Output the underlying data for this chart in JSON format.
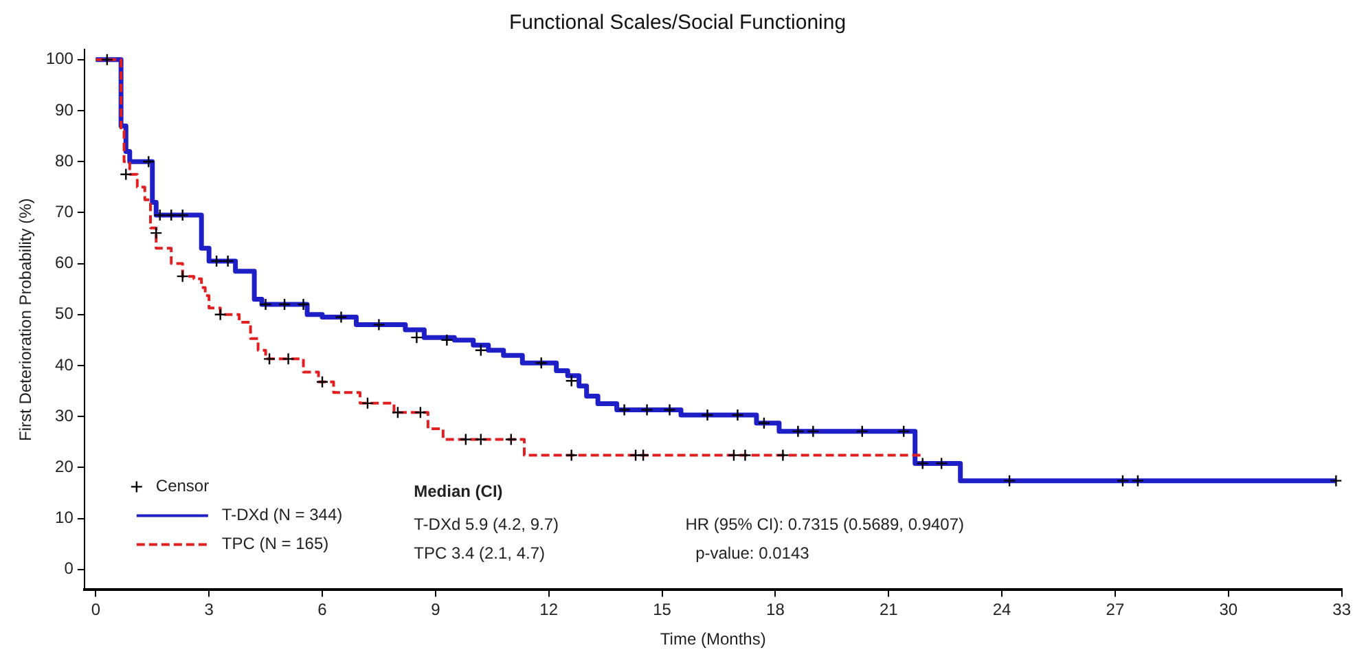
{
  "chart_data": {
    "type": "step",
    "title": "Functional Scales/Social Functioning",
    "xlabel": "Time (Months)",
    "ylabel": "First Deterioration Probability (%)",
    "xlim": [
      -0.3,
      33
    ],
    "xticks": [
      0,
      3,
      6,
      9,
      12,
      15,
      18,
      21,
      24,
      27,
      30,
      33
    ],
    "ylim": [
      -4,
      102
    ],
    "yticks": [
      0,
      10,
      20,
      30,
      40,
      50,
      60,
      70,
      80,
      90,
      100
    ],
    "grid": false,
    "legend": "bottom left",
    "marker": "none",
    "series": [
      {
        "name": "Censor",
        "type": "scatter",
        "marker": "cross",
        "color": "#000000",
        "x": [
          0.3,
          1.4,
          1.7,
          2.0,
          2.3,
          3.2,
          3.5,
          4.5,
          5.0,
          5.5,
          6.5,
          7.5,
          8.5,
          9.3,
          10.2,
          11.8,
          12.6,
          14.0,
          14.6,
          15.2,
          16.2,
          17.0,
          17.7,
          18.6,
          19.0,
          20.3,
          21.4,
          21.9,
          22.4,
          24.2,
          27.2,
          27.6,
          32.85,
          0.8,
          1.6,
          2.3,
          3.3,
          4.6,
          5.1,
          6.0,
          7.2,
          8.0,
          8.6,
          9.8,
          10.2,
          11.0,
          12.6,
          14.3,
          14.5,
          16.9,
          17.2,
          18.2
        ],
        "values": [
          100,
          80,
          69.5,
          69.5,
          69.5,
          60.5,
          60.5,
          52,
          52,
          52,
          49.5,
          48,
          45.5,
          45,
          43,
          40.5,
          37,
          31.3,
          31.3,
          31.3,
          30.3,
          30.3,
          28.7,
          27.1,
          27.1,
          27.1,
          27.1,
          20.8,
          20.8,
          17.4,
          17.4,
          17.4,
          17.4,
          77.5,
          66,
          57.5,
          50,
          41.3,
          41.3,
          36.8,
          32.6,
          30.8,
          30.8,
          25.5,
          25.5,
          25.5,
          22.4,
          22.4,
          22.4,
          22.4,
          22.4,
          22.4
        ]
      },
      {
        "name": "T-DXd (N = 344)",
        "color": "#1f1fc8",
        "line_style": "solid",
        "x": [
          0,
          0.67,
          0.8,
          0.9,
          1.5,
          1.6,
          2.8,
          3.0,
          3.7,
          4.2,
          4.4,
          5.6,
          6.0,
          6.9,
          8.2,
          8.7,
          9.5,
          10.0,
          10.4,
          10.8,
          11.3,
          12.2,
          12.5,
          12.8,
          13.0,
          13.3,
          13.8,
          15.5,
          17.5,
          18.1,
          21.7,
          22.9,
          32.85
        ],
        "values": [
          100,
          87,
          82,
          80,
          72,
          69.5,
          63,
          60.5,
          58.5,
          53,
          52,
          50,
          49.5,
          48,
          47,
          45.5,
          45,
          44,
          43,
          42,
          40.5,
          39,
          38,
          36,
          34,
          32.5,
          31.3,
          30.3,
          28.7,
          27.1,
          20.8,
          17.4,
          17.4
        ]
      },
      {
        "name": "TPC (N = 165)",
        "color": "#e02020",
        "line_style": "dashed",
        "x": [
          0,
          0.67,
          0.75,
          0.9,
          1.1,
          1.3,
          1.45,
          1.6,
          2.0,
          2.3,
          2.6,
          2.8,
          2.9,
          3.0,
          3.3,
          3.8,
          4.1,
          4.3,
          4.5,
          5.5,
          5.9,
          6.3,
          7.0,
          7.9,
          8.8,
          9.2,
          11.35,
          21.9
        ],
        "values": [
          100,
          86,
          80,
          77.5,
          75,
          72.5,
          67,
          63,
          60,
          57.5,
          57,
          55.3,
          53.7,
          51.3,
          50,
          48.5,
          45.3,
          43,
          41.3,
          38.7,
          36.8,
          34.7,
          32.6,
          30.8,
          27.6,
          25.5,
          22.4,
          22.4
        ]
      }
    ],
    "annotations": [
      "Median (CI)",
      "T-DXd 5.9 (4.2, 9.7)",
      "TPC 3.4 (2.1, 4.7)",
      "HR (95% CI): 0.7315 (0.5689, 0.9407)",
      "p-value: 0.0143"
    ]
  }
}
